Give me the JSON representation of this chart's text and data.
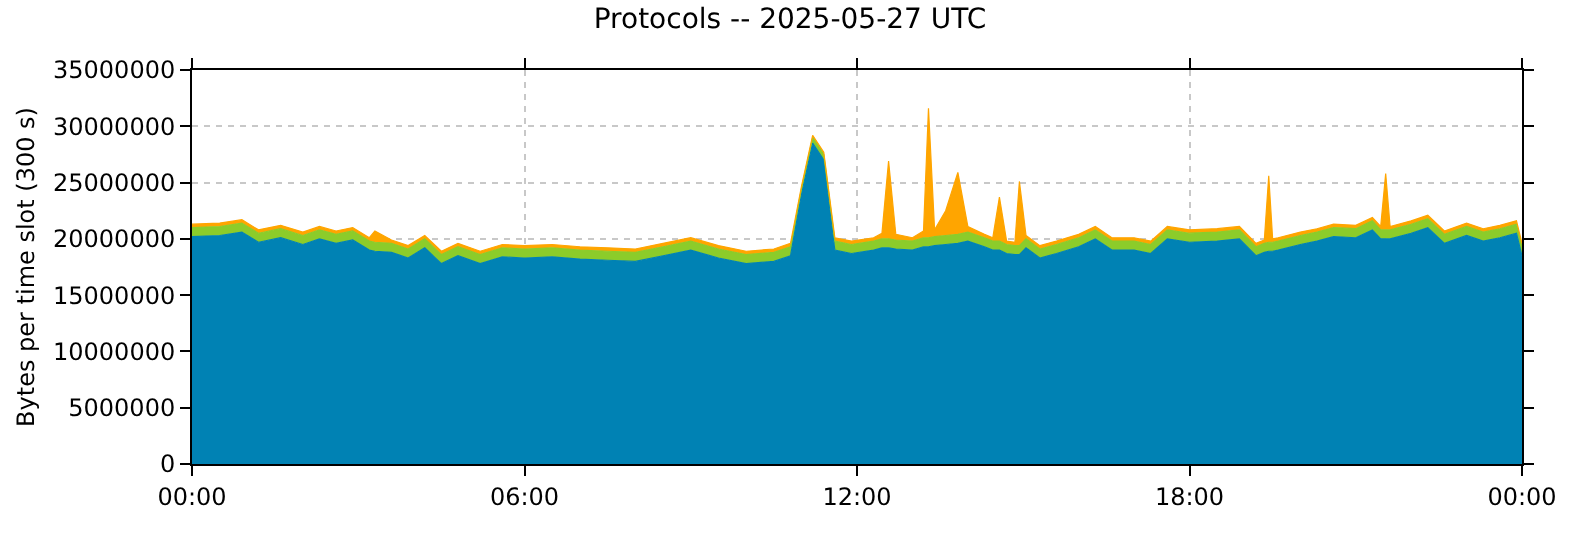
{
  "chart_data": {
    "type": "area",
    "stacked": true,
    "title": "Protocols -- 2025-05-27 UTC",
    "ylabel": "Bytes per time slot (300 s)",
    "x": [
      0,
      0.5,
      0.9,
      1.2,
      1.6,
      2.0,
      2.3,
      2.6,
      2.9,
      3.2,
      3.3,
      3.6,
      3.9,
      4.2,
      4.5,
      4.8,
      5.2,
      5.6,
      6.0,
      6.5,
      7.0,
      7.5,
      8.0,
      8.5,
      9.0,
      9.5,
      10.0,
      10.5,
      10.8,
      11.0,
      11.2,
      11.4,
      11.6,
      11.9,
      12.3,
      12.45,
      12.57,
      12.7,
      13.0,
      13.2,
      13.29,
      13.4,
      13.6,
      13.82,
      14.0,
      14.3,
      14.45,
      14.57,
      14.7,
      14.85,
      14.93,
      15.05,
      15.3,
      15.6,
      16.0,
      16.3,
      16.6,
      17.0,
      17.3,
      17.6,
      18.0,
      18.5,
      18.9,
      19.2,
      19.35,
      19.43,
      19.5,
      19.6,
      20.0,
      20.3,
      20.6,
      21.0,
      21.3,
      21.45,
      21.54,
      21.62,
      22.0,
      22.3,
      22.6,
      23.0,
      23.3,
      23.6,
      23.9,
      24.0
    ],
    "series": [
      {
        "color": "#0082b4",
        "values": [
          20200000,
          20300000,
          20600000,
          19700000,
          20100000,
          19500000,
          20000000,
          19600000,
          19900000,
          19000000,
          18900000,
          18800000,
          18300000,
          19200000,
          17800000,
          18500000,
          17800000,
          18400000,
          18300000,
          18400000,
          18200000,
          18100000,
          18000000,
          18500000,
          19000000,
          18300000,
          17800000,
          18000000,
          18500000,
          24000000,
          28500000,
          27000000,
          19000000,
          18700000,
          19000000,
          19200000,
          19200000,
          19100000,
          19000000,
          19300000,
          19300000,
          19400000,
          19500000,
          19600000,
          19800000,
          19300000,
          19000000,
          19000000,
          18700000,
          18600000,
          18600000,
          19200000,
          18300000,
          18700000,
          19300000,
          20000000,
          19000000,
          19000000,
          18700000,
          20000000,
          19700000,
          19800000,
          20000000,
          18500000,
          18800000,
          18900000,
          18900000,
          19000000,
          19500000,
          19800000,
          20200000,
          20100000,
          20800000,
          20000000,
          20000000,
          20000000,
          20500000,
          21000000,
          19600000,
          20300000,
          19800000,
          20100000,
          20500000,
          18500000
        ]
      },
      {
        "color": "#8ccc2a",
        "values": [
          800000,
          800000,
          800000,
          800000,
          800000,
          800000,
          800000,
          800000,
          800000,
          800000,
          800000,
          800000,
          800000,
          800000,
          800000,
          800000,
          800000,
          800000,
          800000,
          800000,
          800000,
          800000,
          800000,
          800000,
          800000,
          800000,
          800000,
          800000,
          800000,
          500000,
          500000,
          500000,
          800000,
          800000,
          800000,
          800000,
          800000,
          800000,
          800000,
          800000,
          800000,
          800000,
          800000,
          800000,
          800000,
          800000,
          800000,
          800000,
          800000,
          800000,
          800000,
          800000,
          800000,
          800000,
          800000,
          800000,
          800000,
          800000,
          800000,
          800000,
          800000,
          800000,
          800000,
          800000,
          800000,
          800000,
          800000,
          800000,
          800000,
          800000,
          800000,
          800000,
          800000,
          800000,
          800000,
          800000,
          800000,
          800000,
          800000,
          800000,
          800000,
          800000,
          800000,
          800000
        ]
      },
      {
        "color": "#ffa500",
        "values": [
          300000,
          300000,
          300000,
          300000,
          300000,
          300000,
          300000,
          300000,
          300000,
          300000,
          1000000,
          300000,
          300000,
          300000,
          300000,
          300000,
          300000,
          300000,
          300000,
          300000,
          300000,
          300000,
          300000,
          300000,
          300000,
          300000,
          300000,
          300000,
          300000,
          200000,
          200000,
          200000,
          300000,
          300000,
          300000,
          500000,
          6900000,
          500000,
          300000,
          600000,
          11500000,
          600000,
          2200000,
          5500000,
          500000,
          300000,
          300000,
          3900000,
          300000,
          300000,
          5700000,
          300000,
          300000,
          300000,
          300000,
          300000,
          300000,
          300000,
          300000,
          300000,
          300000,
          300000,
          300000,
          300000,
          300000,
          5900000,
          300000,
          300000,
          300000,
          300000,
          300000,
          300000,
          300000,
          300000,
          5000000,
          300000,
          300000,
          300000,
          300000,
          300000,
          300000,
          300000,
          300000,
          300000
        ]
      }
    ],
    "xlim": [
      0,
      24
    ],
    "xticks": [
      {
        "value": 0,
        "label": "00:00"
      },
      {
        "value": 6,
        "label": "06:00"
      },
      {
        "value": 12,
        "label": "12:00"
      },
      {
        "value": 18,
        "label": "18:00"
      },
      {
        "value": 24,
        "label": "00:00"
      }
    ],
    "ylim": [
      0,
      35000000
    ],
    "yticks": [
      0,
      5000000,
      10000000,
      15000000,
      20000000,
      25000000,
      30000000,
      35000000
    ],
    "grid": true
  }
}
